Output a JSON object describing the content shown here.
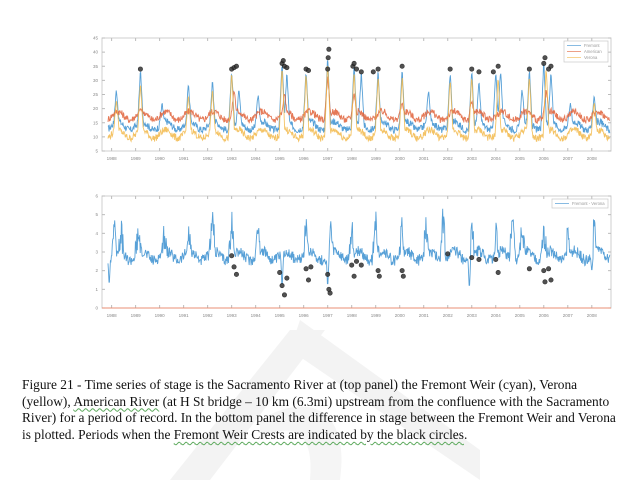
{
  "chart_data": [
    {
      "type": "line",
      "panel": "top",
      "title": "",
      "xlabel": "",
      "ylabel": "",
      "xlim": [
        1987.6,
        2008.8
      ],
      "ylim": [
        5,
        45
      ],
      "xticks": [
        1988,
        1989,
        1990,
        1991,
        1992,
        1993,
        1994,
        1995,
        1996,
        1997,
        1998,
        1999,
        2000,
        2001,
        2002,
        2003,
        2004,
        2005,
        2006,
        2007,
        2008
      ],
      "yticks": [
        5,
        10,
        15,
        20,
        25,
        30,
        35,
        40,
        45
      ],
      "grid": false,
      "legend": {
        "position": "top-right",
        "entries": [
          "Fremont",
          "American",
          "Verona"
        ]
      },
      "series": [
        {
          "name": "Fremont",
          "color": "#3a8fd0",
          "baseline": 14,
          "peaks": [
            [
              1988.2,
              27
            ],
            [
              1989.2,
              34
            ],
            [
              1990.1,
              22
            ],
            [
              1991.2,
              29
            ],
            [
              1992.2,
              30
            ],
            [
              1993.0,
              34
            ],
            [
              1993.3,
              28
            ],
            [
              1994.1,
              25
            ],
            [
              1995.1,
              37
            ],
            [
              1995.3,
              33
            ],
            [
              1996.1,
              34
            ],
            [
              1997.0,
              39
            ],
            [
              1998.1,
              36
            ],
            [
              1998.4,
              33
            ],
            [
              1999.1,
              34
            ],
            [
              2000.1,
              34
            ],
            [
              2001.2,
              27
            ],
            [
              2002.1,
              33
            ],
            [
              2003.0,
              34
            ],
            [
              2003.3,
              30
            ],
            [
              2004.0,
              33
            ],
            [
              2004.2,
              34
            ],
            [
              2005.1,
              27
            ],
            [
              2005.4,
              34
            ],
            [
              2006.0,
              37
            ],
            [
              2006.3,
              34
            ],
            [
              2007.1,
              22
            ],
            [
              2008.1,
              25
            ]
          ]
        },
        {
          "name": "American",
          "color": "#e0623a",
          "baseline": 17.5,
          "peaks": [
            [
              1989.2,
              20
            ],
            [
              1993.1,
              27
            ],
            [
              1995.2,
              26
            ],
            [
              1997.0,
              32
            ],
            [
              1998.1,
              26
            ],
            [
              2000.1,
              22
            ],
            [
              2003.0,
              23
            ],
            [
              2006.1,
              27
            ]
          ]
        },
        {
          "name": "Verona",
          "color": "#f2b84a",
          "baseline": 11,
          "peaks": [
            [
              1988.2,
              24
            ],
            [
              1989.2,
              30
            ],
            [
              1991.2,
              25
            ],
            [
              1992.2,
              27
            ],
            [
              1993.0,
              33
            ],
            [
              1995.1,
              35
            ],
            [
              1996.1,
              33
            ],
            [
              1997.0,
              37
            ],
            [
              1998.1,
              34
            ],
            [
              1999.1,
              32
            ],
            [
              2000.1,
              32
            ],
            [
              2002.1,
              31
            ],
            [
              2003.0,
              32
            ],
            [
              2004.1,
              32
            ],
            [
              2005.4,
              32
            ],
            [
              2006.1,
              35
            ],
            [
              2008.1,
              23
            ]
          ]
        }
      ],
      "crest_markers": {
        "label": "Fremont Weir Crests",
        "color": "#111111",
        "points": [
          [
            1989.2,
            34
          ],
          [
            1993.0,
            34
          ],
          [
            1993.1,
            34.5
          ],
          [
            1993.2,
            35
          ],
          [
            1995.1,
            36
          ],
          [
            1995.15,
            37
          ],
          [
            1995.2,
            35
          ],
          [
            1995.3,
            34.5
          ],
          [
            1996.1,
            34
          ],
          [
            1996.2,
            33.5
          ],
          [
            1997.0,
            34
          ],
          [
            1997.02,
            38
          ],
          [
            1997.05,
            41
          ],
          [
            1998.05,
            35
          ],
          [
            1998.1,
            36
          ],
          [
            1998.2,
            34
          ],
          [
            1998.4,
            33
          ],
          [
            1998.9,
            33
          ],
          [
            1999.1,
            34
          ],
          [
            2000.1,
            35
          ],
          [
            2002.1,
            34
          ],
          [
            2003.0,
            34
          ],
          [
            2003.3,
            33
          ],
          [
            2003.9,
            33
          ],
          [
            2004.1,
            35
          ],
          [
            2005.4,
            34
          ],
          [
            2006.0,
            36
          ],
          [
            2006.05,
            38
          ],
          [
            2006.2,
            34
          ],
          [
            2006.3,
            35
          ]
        ]
      }
    },
    {
      "type": "line",
      "panel": "bottom",
      "title": "",
      "xlabel": "",
      "ylabel": "",
      "xlim": [
        1987.6,
        2008.8
      ],
      "ylim": [
        0,
        6
      ],
      "xticks": [
        1988,
        1989,
        1990,
        1991,
        1992,
        1993,
        1994,
        1995,
        1996,
        1997,
        1998,
        1999,
        2000,
        2001,
        2002,
        2003,
        2004,
        2005,
        2006,
        2007,
        2008
      ],
      "yticks": [
        0,
        1,
        2,
        3,
        4,
        5,
        6
      ],
      "grid": false,
      "legend": {
        "position": "top-right",
        "entries": [
          "Fremont - Verona"
        ]
      },
      "series": [
        {
          "name": "Fremont - Verona",
          "color": "#3a8fd0",
          "baseline": 2.8,
          "peaks": [
            [
              1988.1,
              4.6
            ],
            [
              1988.4,
              4.1
            ],
            [
              1989.1,
              4.0
            ],
            [
              1990.2,
              4.0
            ],
            [
              1991.2,
              3.9
            ],
            [
              1992.2,
              5.1
            ],
            [
              1993.0,
              4.6
            ],
            [
              1994.1,
              4.4
            ],
            [
              1996.1,
              4.3
            ],
            [
              1997.1,
              4.5
            ],
            [
              1998.0,
              4.4
            ],
            [
              1999.0,
              4.6
            ],
            [
              2000.1,
              4.3
            ],
            [
              2001.1,
              4.5
            ],
            [
              2001.8,
              4.9
            ],
            [
              2003.0,
              4.3
            ],
            [
              2004.0,
              4.1
            ],
            [
              2004.7,
              5.3
            ],
            [
              2005.1,
              4.6
            ],
            [
              2006.0,
              4.2
            ],
            [
              2007.0,
              3.8
            ],
            [
              2008.1,
              4.7
            ]
          ],
          "dips": [
            [
              1987.9,
              1.1
            ],
            [
              1995.1,
              1.0
            ],
            [
              1997.0,
              1.0
            ],
            [
              2002.9,
              0.9
            ],
            [
              2008.0,
              1.9
            ]
          ]
        },
        {
          "name": "zero-line",
          "color": "#f08060",
          "constant": 0
        }
      ],
      "crest_markers": {
        "label": "Fremont Weir Crests",
        "color": "#111111",
        "points": [
          [
            1993.0,
            2.8
          ],
          [
            1993.1,
            2.2
          ],
          [
            1993.2,
            1.8
          ],
          [
            1995.0,
            1.9
          ],
          [
            1995.1,
            1.2
          ],
          [
            1995.2,
            0.7
          ],
          [
            1995.3,
            1.6
          ],
          [
            1996.1,
            2.1
          ],
          [
            1996.2,
            1.5
          ],
          [
            1996.3,
            2.2
          ],
          [
            1997.0,
            1.8
          ],
          [
            1997.05,
            1.0
          ],
          [
            1997.1,
            0.8
          ],
          [
            1998.0,
            2.3
          ],
          [
            1998.1,
            1.7
          ],
          [
            1998.2,
            2.5
          ],
          [
            1998.4,
            2.3
          ],
          [
            1999.1,
            2.0
          ],
          [
            1999.15,
            1.7
          ],
          [
            2000.1,
            2.0
          ],
          [
            2000.15,
            1.7
          ],
          [
            2002.0,
            2.9
          ],
          [
            2003.0,
            2.7
          ],
          [
            2003.3,
            2.6
          ],
          [
            2004.0,
            2.6
          ],
          [
            2004.1,
            1.9
          ],
          [
            2005.4,
            2.1
          ],
          [
            2006.0,
            2.0
          ],
          [
            2006.05,
            1.4
          ],
          [
            2006.2,
            2.1
          ],
          [
            2006.3,
            1.5
          ]
        ]
      }
    }
  ],
  "caption": {
    "segments": [
      {
        "text": "Figure 21 - Time series of stage is the Sacramento River at (top panel) the Fremont Weir (cyan), Verona (yellow), ",
        "squiggle": false
      },
      {
        "text": "American River",
        "squiggle": true
      },
      {
        "text": " (at H St bridge – 10 km (6.3mi) upstream from the confluence with the Sacramento River) for a period of record.  In the bottom panel the difference in stage between the Fremont Weir and Verona is plotted. Periods when the ",
        "squiggle": false
      },
      {
        "text": "Fremont Weir Crests are indicated by the black circles",
        "squiggle": true
      },
      {
        "text": ".",
        "squiggle": false
      }
    ]
  }
}
